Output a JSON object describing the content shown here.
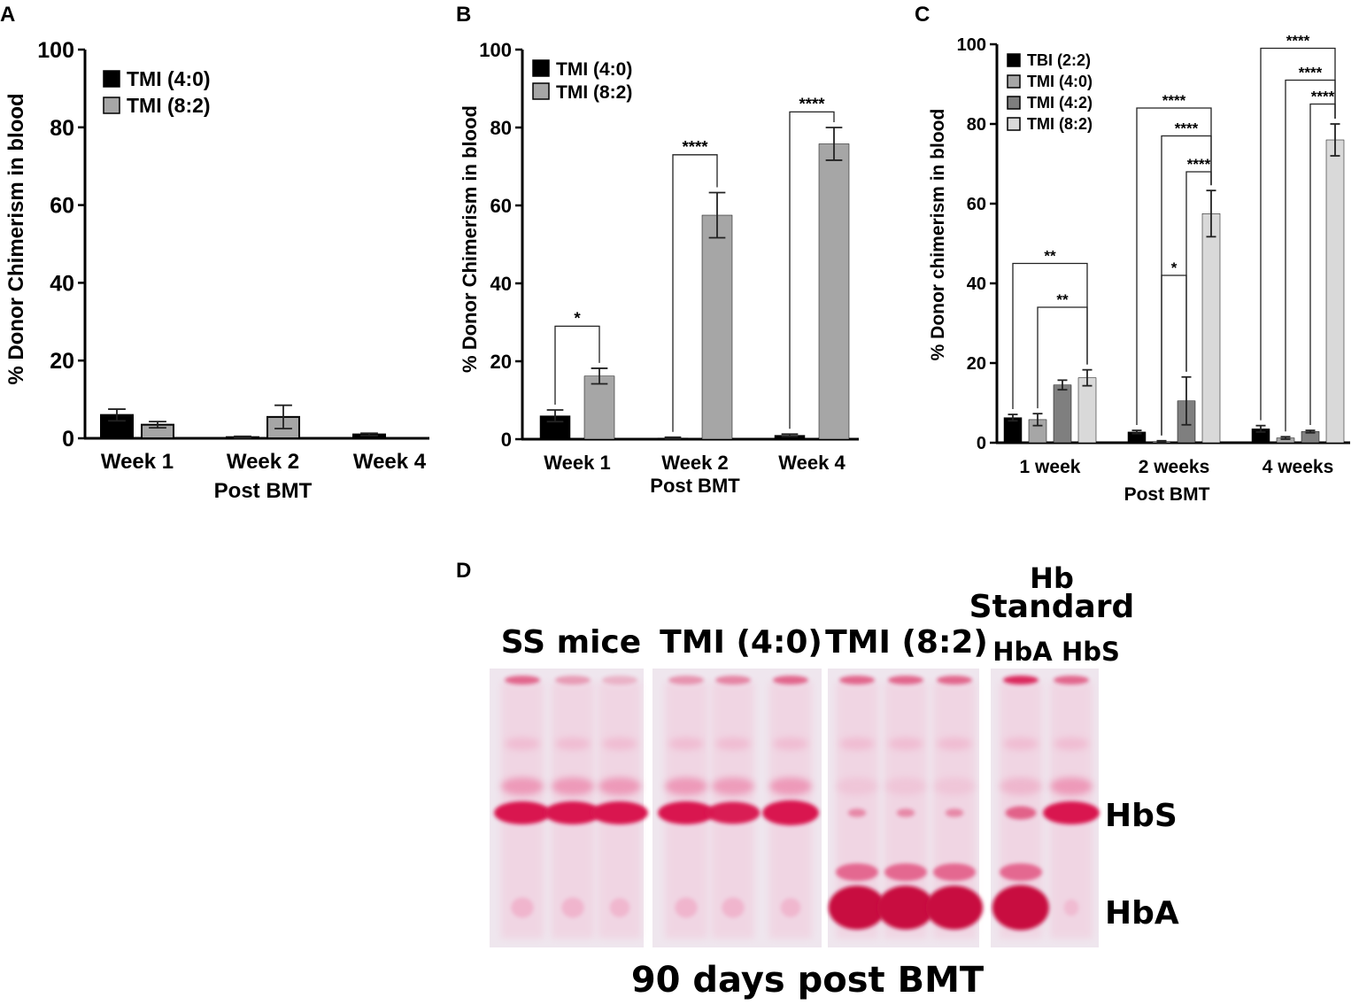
{
  "colors": {
    "tbi": "#000000",
    "tmi40": "#000000",
    "tmi40_panelC": "#a6a6a6",
    "tmi42": "#7f7f7f",
    "tmi82": "#a6a6a6",
    "tmi82_panelC": "#d9d9d9",
    "gel_bg": "#efe6ee",
    "band": "#d9154f"
  },
  "chart_data": [
    {
      "panel": "A",
      "type": "bar",
      "ylabel": "% Donor Chimerism in blood",
      "xlabel": "Post BMT",
      "ylim": [
        0,
        100
      ],
      "yticks": [
        "0",
        "20",
        "40",
        "60",
        "80",
        "100"
      ],
      "categories": [
        "Week 1",
        "Week 2",
        "Week 4"
      ],
      "legend_position": "top-left",
      "series": [
        {
          "name": "TMI (4:0)",
          "values": [
            6,
            0.3,
            1
          ],
          "errors": [
            1.5,
            0.2,
            0.3
          ]
        },
        {
          "name": "TMI (8:2)",
          "values": [
            3.5,
            5.5,
            0
          ],
          "errors": [
            0.8,
            3,
            0
          ]
        }
      ]
    },
    {
      "panel": "B",
      "type": "bar",
      "ylabel": "% Donor Chimerism in blood",
      "xlabel": "Post BMT",
      "ylim": [
        0,
        100
      ],
      "yticks": [
        "0",
        "20",
        "40",
        "60",
        "80",
        "100"
      ],
      "categories": [
        "Week 1",
        "Week 2",
        "Week 4"
      ],
      "legend_position": "top-left",
      "series": [
        {
          "name": "TMI (4:0)",
          "values": [
            6,
            0.3,
            1
          ],
          "errors": [
            1.5,
            0.2,
            0.3
          ]
        },
        {
          "name": "TMI (8:2)",
          "values": [
            16.2,
            57.5,
            75.8
          ],
          "errors": [
            2,
            5.8,
            4.2
          ]
        }
      ],
      "significance": [
        {
          "group": 0,
          "from": 0,
          "to": 1,
          "label": "*",
          "y": 29
        },
        {
          "group": 1,
          "from": 0,
          "to": 1,
          "label": "****",
          "y": 73
        },
        {
          "group": 2,
          "from": 0,
          "to": 1,
          "label": "****",
          "y": 84
        }
      ]
    },
    {
      "panel": "C",
      "type": "bar",
      "ylabel": "% Donor chimerism in blood",
      "xlabel": "Post BMT",
      "ylim": [
        0,
        100
      ],
      "yticks": [
        "0",
        "20",
        "40",
        "60",
        "80",
        "100"
      ],
      "categories": [
        "1 week",
        "2 weeks",
        "4 weeks"
      ],
      "legend_position": "top-left",
      "series": [
        {
          "name": "TBI (2:2)",
          "values": [
            6.3,
            2.7,
            3.5
          ],
          "errors": [
            0.8,
            0.4,
            0.8
          ]
        },
        {
          "name": "TMI (4:0)",
          "values": [
            5.8,
            0.3,
            1.2
          ],
          "errors": [
            1.5,
            0.2,
            0.3
          ]
        },
        {
          "name": "TMI (4:2)",
          "values": [
            14.5,
            10.5,
            2.8
          ],
          "errors": [
            1.2,
            6,
            0.3
          ]
        },
        {
          "name": "TMI (8:2)",
          "values": [
            16.3,
            57.5,
            76
          ],
          "errors": [
            2,
            5.8,
            4
          ]
        }
      ],
      "significance": [
        {
          "group": 0,
          "from": 0,
          "to": 3,
          "label": "**",
          "y": 45
        },
        {
          "group": 0,
          "from": 1,
          "to": 3,
          "label": "**",
          "y": 34
        },
        {
          "group": 1,
          "from": 0,
          "to": 3,
          "label": "****",
          "y": 84
        },
        {
          "group": 1,
          "from": 1,
          "to": 3,
          "label": "****",
          "y": 77
        },
        {
          "group": 1,
          "from": 2,
          "to": 3,
          "label": "****",
          "y": 68
        },
        {
          "group": 1,
          "from": 1,
          "to": 2,
          "label": "*",
          "y": 42
        },
        {
          "group": 2,
          "from": 0,
          "to": 3,
          "label": "****",
          "y": 99
        },
        {
          "group": 2,
          "from": 1,
          "to": 3,
          "label": "****",
          "y": 91
        },
        {
          "group": 2,
          "from": 2,
          "to": 3,
          "label": "****",
          "y": 85
        }
      ]
    }
  ],
  "gel": {
    "panel": "D",
    "header_hb": "Hb",
    "header_standard": "Standard",
    "groups": [
      "SS mice",
      "TMI (4:0)",
      "TMI (8:2)"
    ],
    "standard_lanes": [
      "HbA",
      "HbS"
    ],
    "band_labels": {
      "hbs": "HbS",
      "hba": "HbA"
    },
    "footer": "90 days post BMT"
  }
}
